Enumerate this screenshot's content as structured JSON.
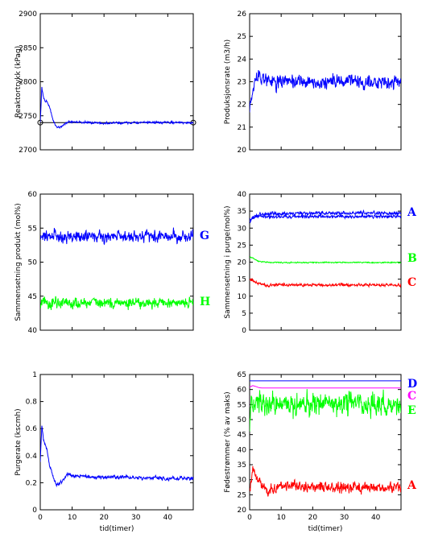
{
  "chart_data": [
    {
      "type": "line",
      "ylabel": "Reaktortrykk (kPag)",
      "xlim": [
        0,
        48
      ],
      "ylim": [
        2700,
        2900
      ],
      "yticks": [
        2700,
        2750,
        2800,
        2850,
        2900
      ],
      "yticklabels": [
        "2700",
        "2750",
        "2800",
        "2850",
        "2900"
      ],
      "xticks": [
        0,
        10,
        20,
        30,
        40
      ],
      "xticklabels": [],
      "series": [
        {
          "color": "#0000ff",
          "x": [
            0,
            0.5,
            1,
            1.5,
            2,
            3,
            4,
            5,
            6,
            7,
            8,
            10,
            15,
            20,
            30,
            40,
            48
          ],
          "values": [
            2740,
            2792,
            2778,
            2770,
            2772,
            2762,
            2743,
            2735,
            2732,
            2736,
            2740,
            2741,
            2740,
            2739,
            2740,
            2740,
            2740
          ],
          "noise": 1.2
        }
      ],
      "reference_lines": [
        {
          "color": "#000000",
          "y": 2740,
          "marker": "circle"
        }
      ]
    },
    {
      "type": "line",
      "ylabel": "Produksjonsrate (m3/h)",
      "xlim": [
        0,
        48
      ],
      "ylim": [
        20,
        26
      ],
      "yticks": [
        20,
        21,
        22,
        23,
        24,
        25,
        26
      ],
      "yticklabels": [
        "20",
        "21",
        "22",
        "23",
        "24",
        "25",
        "26"
      ],
      "xticks": [
        0,
        10,
        20,
        30,
        40
      ],
      "xticklabels": [],
      "series": [
        {
          "color": "#0000ff",
          "x": [
            0,
            0.5,
            1,
            2,
            3,
            4,
            6,
            10,
            20,
            30,
            40,
            48
          ],
          "values": [
            21.9,
            22.2,
            22.8,
            23.1,
            23.4,
            23.2,
            23.0,
            23.0,
            22.95,
            23.0,
            22.95,
            23.0
          ],
          "noise": 0.22
        }
      ]
    },
    {
      "type": "line",
      "ylabel": "Sammensetning produkt (mol%)",
      "xlim": [
        0,
        48
      ],
      "ylim": [
        40,
        60
      ],
      "yticks": [
        40,
        45,
        50,
        55,
        60
      ],
      "yticklabels": [
        "40",
        "45",
        "50",
        "55",
        "60"
      ],
      "xticks": [
        0,
        10,
        20,
        30,
        40
      ],
      "xticklabels": [],
      "series": [
        {
          "name": "G",
          "color": "#0000ff",
          "x": [
            0,
            48
          ],
          "values": [
            53.8,
            53.8
          ],
          "noise": 0.6
        },
        {
          "name": "H",
          "color": "#00ff00",
          "x": [
            0,
            48
          ],
          "values": [
            44.0,
            44.0
          ],
          "noise": 0.6
        }
      ]
    },
    {
      "type": "line",
      "ylabel": "Sammensetning i purge(mol%)",
      "xlim": [
        0,
        48
      ],
      "ylim": [
        0,
        40
      ],
      "yticks": [
        0,
        5,
        10,
        15,
        20,
        25,
        30,
        35,
        40
      ],
      "yticklabels": [
        "0",
        "5",
        "10",
        "15",
        "20",
        "25",
        "30",
        "35",
        "40"
      ],
      "xticks": [
        0,
        10,
        20,
        30,
        40
      ],
      "xticklabels": [],
      "series": [
        {
          "name": "A",
          "color": "#0000ff",
          "x": [
            0,
            1,
            2,
            4,
            6,
            10,
            20,
            30,
            40,
            48
          ],
          "values": [
            31.8,
            33.0,
            33.5,
            34.0,
            34.2,
            34.3,
            34.4,
            34.4,
            34.4,
            34.4
          ],
          "noise": 0.35
        },
        {
          "name": "A",
          "color": "#0000ff",
          "x": [
            0,
            1,
            2,
            4,
            6,
            10,
            20,
            30,
            40,
            48
          ],
          "values": [
            32.5,
            33.0,
            33.3,
            33.4,
            33.4,
            33.4,
            33.4,
            33.4,
            33.4,
            33.4
          ],
          "noise": 0.3
        },
        {
          "name": "B",
          "color": "#00ff00",
          "x": [
            0,
            1,
            2,
            3,
            5,
            10,
            20,
            30,
            40,
            48
          ],
          "values": [
            21.5,
            21.2,
            20.6,
            20.2,
            20.0,
            19.9,
            19.9,
            19.9,
            19.9,
            19.9
          ],
          "noise": 0.12
        },
        {
          "name": "C",
          "color": "#ff0000",
          "x": [
            0,
            1,
            2,
            3,
            5,
            7,
            10,
            20,
            30,
            40,
            48
          ],
          "values": [
            14.8,
            14.5,
            14.0,
            13.7,
            13.2,
            13.3,
            13.3,
            13.3,
            13.3,
            13.3,
            13.3
          ],
          "noise": 0.3
        }
      ]
    },
    {
      "type": "line",
      "ylabel": "Purgerate (kscmh)",
      "xlabel": "tid(timer)",
      "xlim": [
        0,
        48
      ],
      "ylim": [
        0,
        1
      ],
      "yticks": [
        0,
        0.2,
        0.4,
        0.6,
        0.8,
        1
      ],
      "yticklabels": [
        "0",
        "0.2",
        "0.4",
        "0.6",
        "0.8",
        "1"
      ],
      "xticks": [
        0,
        10,
        20,
        30,
        40
      ],
      "xticklabels": [
        "0",
        "10",
        "20",
        "30",
        "40"
      ],
      "series": [
        {
          "color": "#0000ff",
          "x": [
            0,
            0.5,
            1,
            2,
            3,
            4,
            5,
            6,
            7,
            8,
            9,
            10,
            20,
            30,
            40,
            48
          ],
          "values": [
            0.36,
            0.63,
            0.52,
            0.45,
            0.32,
            0.25,
            0.18,
            0.19,
            0.22,
            0.25,
            0.26,
            0.25,
            0.24,
            0.24,
            0.23,
            0.23
          ],
          "noise": 0.01
        }
      ]
    },
    {
      "type": "line",
      "ylabel": "Fødestrømmer (% av maks)",
      "xlabel": "tid(timer)",
      "xlim": [
        0,
        48
      ],
      "ylim": [
        20,
        65
      ],
      "yticks": [
        20,
        25,
        30,
        35,
        40,
        45,
        50,
        55,
        60,
        65
      ],
      "yticklabels": [
        "20",
        "25",
        "30",
        "35",
        "40",
        "45",
        "50",
        "55",
        "60",
        "65"
      ],
      "xticks": [
        0,
        10,
        20,
        30,
        40
      ],
      "xticklabels": [
        "0",
        "10",
        "20",
        "30",
        "40"
      ],
      "series": [
        {
          "name": "D",
          "color": "#0000ff",
          "x": [
            0,
            48
          ],
          "values": [
            62.9,
            62.9
          ],
          "noise": 0
        },
        {
          "name": "C",
          "color": "#ff00ff",
          "x": [
            0,
            1,
            2,
            3,
            4,
            48
          ],
          "values": [
            60.8,
            61.3,
            61.0,
            60.6,
            60.5,
            60.5
          ],
          "noise": 0
        },
        {
          "name": "E",
          "color": "#00ff00",
          "x": [
            0,
            0.5,
            1,
            2,
            3,
            6,
            10,
            20,
            30,
            40,
            48
          ],
          "values": [
            47,
            58,
            55,
            57,
            56,
            55,
            55,
            55,
            55,
            55,
            55
          ],
          "noise": 2.8
        },
        {
          "name": "A",
          "color": "#ff0000",
          "x": [
            0,
            1,
            2,
            3,
            4,
            6,
            8,
            10,
            20,
            30,
            40,
            48
          ],
          "values": [
            26,
            33,
            31,
            30,
            28,
            26,
            27,
            28,
            27.5,
            27.5,
            27.5,
            27.5
          ],
          "noise": 1.2
        }
      ]
    }
  ]
}
